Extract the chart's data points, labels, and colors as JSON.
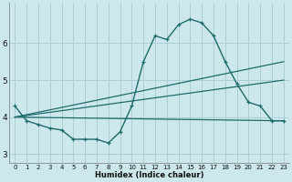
{
  "background_color": "#cce8ec",
  "grid_color": "#aacfd4",
  "line_color": "#1e6b6b",
  "xlabel": "Humidex (Indice chaleur)",
  "xlim": [
    -0.5,
    23.5
  ],
  "ylim": [
    2.75,
    7.1
  ],
  "yticks": [
    3,
    4,
    5,
    6
  ],
  "xticks": [
    0,
    1,
    2,
    3,
    4,
    5,
    6,
    7,
    8,
    9,
    10,
    11,
    12,
    13,
    14,
    15,
    16,
    17,
    18,
    19,
    20,
    21,
    22,
    23
  ],
  "curve1_x": [
    0,
    1,
    2,
    3,
    4,
    5,
    6,
    7,
    8,
    9,
    10,
    11,
    12,
    13,
    14,
    15,
    16,
    17,
    18,
    19,
    20,
    21,
    22,
    23
  ],
  "curve1_y": [
    4.3,
    3.9,
    3.8,
    3.7,
    3.65,
    3.4,
    3.4,
    3.4,
    3.3,
    3.6,
    4.3,
    5.5,
    6.2,
    6.1,
    6.5,
    6.65,
    6.55,
    6.2,
    5.5,
    4.9,
    4.4,
    4.3,
    3.9,
    3.9
  ],
  "line1_x": [
    0,
    23
  ],
  "line1_y": [
    4.0,
    3.9
  ],
  "line2_x": [
    0,
    23
  ],
  "line2_y": [
    4.0,
    5.0
  ],
  "line3_x": [
    0,
    23
  ],
  "line3_y": [
    4.0,
    5.5
  ],
  "xlabel_fontsize": 6,
  "tick_fontsize_x": 5,
  "tick_fontsize_y": 6.5
}
